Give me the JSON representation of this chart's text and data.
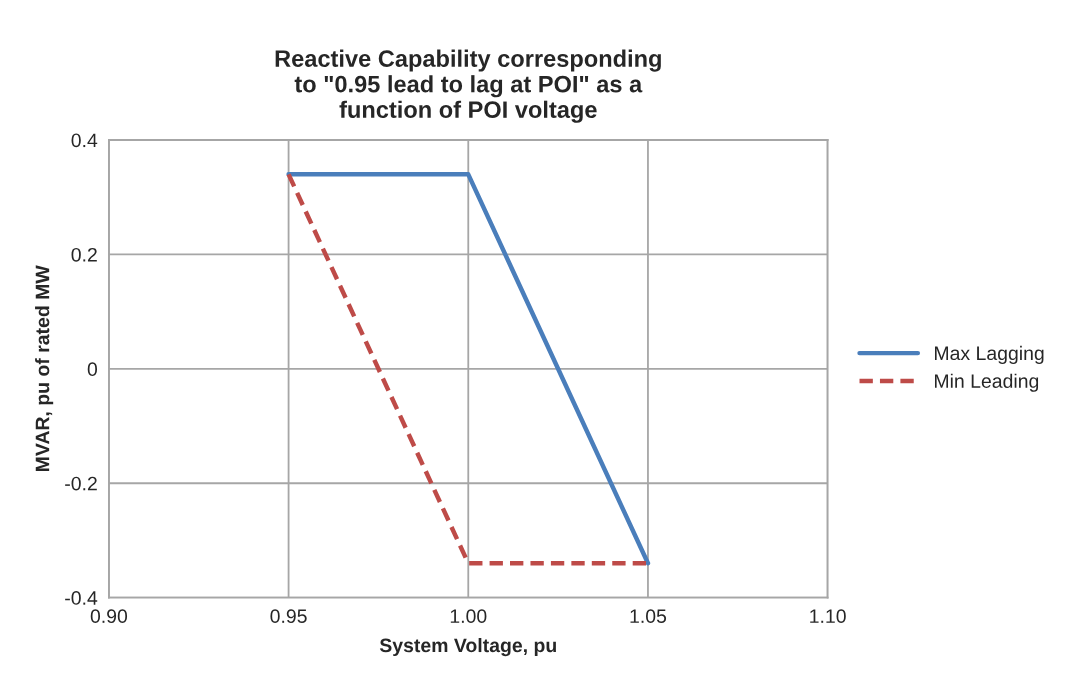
{
  "chart_data": {
    "type": "line",
    "title": "Reactive Capability corresponding\nto \"0.95 lead to lag at POI\" as a\nfunction of POI voltage",
    "xlabel": "System Voltage, pu",
    "ylabel": "MVAR, pu of rated MW",
    "series": [
      {
        "name": "Max Lagging",
        "color": "#4a7ebb",
        "line_style": "solid",
        "x": [
          0.95,
          1.0,
          1.05
        ],
        "values": [
          0.34,
          0.34,
          -0.34
        ]
      },
      {
        "name": "Min Leading",
        "color": "#be4b48",
        "line_style": "dashed",
        "x": [
          0.95,
          1.0,
          1.05
        ],
        "values": [
          0.34,
          -0.34,
          -0.34
        ]
      }
    ],
    "xlim": [
      0.9,
      1.1
    ],
    "xticks": [
      {
        "value": 0.9,
        "label": "0.90"
      },
      0.95,
      {
        "value": 1.0,
        "label": "1.00"
      },
      1.05,
      {
        "value": 1.1,
        "label": "1.10"
      }
    ],
    "ylim": [
      -0.4,
      0.4
    ],
    "yticks": [
      -0.4,
      -0.2,
      0,
      0.2,
      0.4
    ],
    "grid": true,
    "legend": "right",
    "marker": "none"
  }
}
